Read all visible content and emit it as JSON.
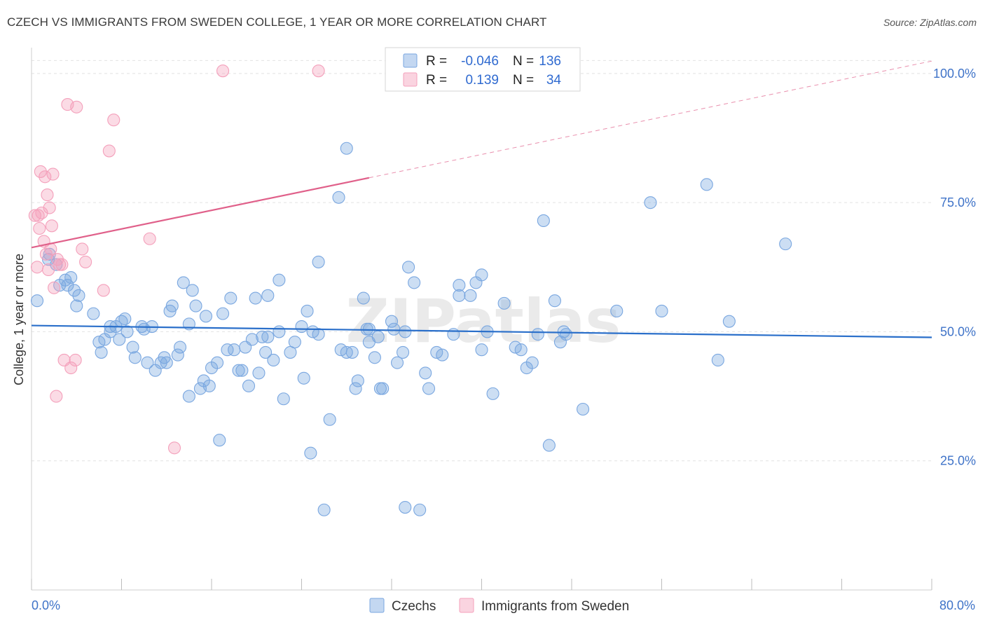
{
  "header": {
    "title": "CZECH VS IMMIGRANTS FROM SWEDEN COLLEGE, 1 YEAR OR MORE CORRELATION CHART",
    "source": "Source: ZipAtlas.com"
  },
  "chart_data": {
    "type": "scatter",
    "ylabel": "College, 1 year or more",
    "xlim": [
      0,
      80
    ],
    "ylim": [
      0,
      105
    ],
    "x_tick_labels": [
      "0.0%",
      "80.0%"
    ],
    "y_tick_labels": [
      "100.0%",
      "75.0%",
      "50.0%",
      "25.0%"
    ],
    "y_ticks": [
      100,
      75,
      50,
      25
    ],
    "watermark": "ZIPatlas",
    "legend_stats": [
      {
        "r_label": "R =",
        "r_value": "-0.046",
        "n_label": "N =",
        "n_value": "136"
      },
      {
        "r_label": "R =",
        "r_value": "0.139",
        "n_label": "N =",
        "n_value": "34"
      }
    ],
    "series": [
      {
        "name": "Czechs",
        "color": "#7aa7e0",
        "line_color": "#2a6fca",
        "trend": {
          "x0": 0,
          "y0": 51.2,
          "x1": 80,
          "y1": 48.9
        },
        "points": [
          [
            0.5,
            56
          ],
          [
            1.5,
            64
          ],
          [
            1.6,
            65
          ],
          [
            2.2,
            63
          ],
          [
            2.5,
            59
          ],
          [
            3,
            60
          ],
          [
            3.2,
            59
          ],
          [
            3.5,
            60.5
          ],
          [
            3.8,
            58
          ],
          [
            4.2,
            57
          ],
          [
            4,
            55
          ],
          [
            5.5,
            53.5
          ],
          [
            6,
            48
          ],
          [
            6.2,
            46
          ],
          [
            6.5,
            48.5
          ],
          [
            7,
            51
          ],
          [
            7.5,
            51
          ],
          [
            7.8,
            48.5
          ],
          [
            8,
            52
          ],
          [
            8.3,
            52.5
          ],
          [
            8.5,
            50
          ],
          [
            9,
            47
          ],
          [
            9.2,
            45
          ],
          [
            9.8,
            51
          ],
          [
            10,
            50.5
          ],
          [
            10.3,
            44
          ],
          [
            10.7,
            51
          ],
          [
            11,
            42.5
          ],
          [
            11.5,
            44
          ],
          [
            11.8,
            45
          ],
          [
            12,
            44
          ],
          [
            12.3,
            54
          ],
          [
            12.5,
            55
          ],
          [
            13,
            45.5
          ],
          [
            13.2,
            47
          ],
          [
            13.5,
            59.5
          ],
          [
            14,
            37.5
          ],
          [
            14.3,
            58
          ],
          [
            14.6,
            55
          ],
          [
            15,
            39
          ],
          [
            15.3,
            40.5
          ],
          [
            15.5,
            53
          ],
          [
            15.8,
            39.5
          ],
          [
            16,
            43
          ],
          [
            16.5,
            44
          ],
          [
            16.7,
            29
          ],
          [
            17,
            53.5
          ],
          [
            17.4,
            46.5
          ],
          [
            17.7,
            56.5
          ],
          [
            18,
            46.5
          ],
          [
            18.4,
            42.5
          ],
          [
            18.7,
            42.5
          ],
          [
            19,
            47
          ],
          [
            19.3,
            39.5
          ],
          [
            19.6,
            48.5
          ],
          [
            19.9,
            56.5
          ],
          [
            20.2,
            42
          ],
          [
            20.5,
            49
          ],
          [
            20.8,
            46
          ],
          [
            21,
            57
          ],
          [
            21.5,
            44.5
          ],
          [
            22,
            50
          ],
          [
            22,
            60
          ],
          [
            22.4,
            37
          ],
          [
            23,
            46
          ],
          [
            23.4,
            48
          ],
          [
            24,
            51
          ],
          [
            24.2,
            41
          ],
          [
            24.5,
            54
          ],
          [
            24.8,
            26.5
          ],
          [
            25,
            50
          ],
          [
            25.5,
            49.5
          ],
          [
            25.5,
            63.5
          ],
          [
            26.5,
            33
          ],
          [
            27.5,
            46.5
          ],
          [
            27.3,
            76
          ],
          [
            28,
            85.5
          ],
          [
            28.5,
            46
          ],
          [
            28.8,
            39
          ],
          [
            29,
            40.5
          ],
          [
            29.5,
            56.5
          ],
          [
            29.8,
            50.5
          ],
          [
            30,
            48
          ],
          [
            30.5,
            45
          ],
          [
            30.8,
            49
          ],
          [
            31,
            39
          ],
          [
            31.2,
            39
          ],
          [
            32,
            52
          ],
          [
            32.2,
            50.5
          ],
          [
            32.5,
            44
          ],
          [
            33,
            46
          ],
          [
            33.2,
            50
          ],
          [
            33.5,
            62.5
          ],
          [
            34,
            59.5
          ],
          [
            34.5,
            15.5
          ],
          [
            35,
            42
          ],
          [
            35.3,
            39
          ],
          [
            36,
            46
          ],
          [
            36.5,
            45.5
          ],
          [
            38,
            59
          ],
          [
            38,
            57
          ],
          [
            39,
            57
          ],
          [
            39.5,
            59.5
          ],
          [
            40,
            61
          ],
          [
            40.5,
            50
          ],
          [
            41,
            38
          ],
          [
            42,
            55.5
          ],
          [
            43,
            47
          ],
          [
            43.5,
            46.5
          ],
          [
            44,
            43
          ],
          [
            44.5,
            44
          ],
          [
            45,
            49.5
          ],
          [
            45.5,
            71.5
          ],
          [
            46,
            28
          ],
          [
            46.5,
            56
          ],
          [
            47,
            48
          ],
          [
            47.3,
            50
          ],
          [
            47.5,
            49.5
          ],
          [
            49,
            35
          ],
          [
            52,
            54
          ],
          [
            55,
            75
          ],
          [
            56,
            54
          ],
          [
            60,
            78.5
          ],
          [
            61,
            44.5
          ],
          [
            62,
            52
          ],
          [
            67,
            67
          ],
          [
            26,
            15.5
          ],
          [
            28,
            46
          ],
          [
            40,
            46.5
          ],
          [
            30,
            50.5
          ],
          [
            33.2,
            16
          ],
          [
            37.5,
            49.5
          ],
          [
            21,
            49
          ],
          [
            14,
            51.5
          ],
          [
            7,
            50
          ]
        ]
      },
      {
        "name": "Immigrants from Sweden",
        "color": "#f4a0bb",
        "line_color": "#e0608a",
        "trend": {
          "x0": 0,
          "y0": 66.3,
          "x1": 30,
          "y1": 79.8,
          "x_dash_end": 80,
          "y_dash_end": 102.4
        },
        "points": [
          [
            0.3,
            72.5
          ],
          [
            0.5,
            62.5
          ],
          [
            0.6,
            72.5
          ],
          [
            0.7,
            70
          ],
          [
            0.8,
            81
          ],
          [
            0.9,
            73
          ],
          [
            1.1,
            67.5
          ],
          [
            1.2,
            80
          ],
          [
            1.4,
            76.5
          ],
          [
            1.5,
            62
          ],
          [
            1.6,
            74
          ],
          [
            1.7,
            66
          ],
          [
            1.8,
            70.5
          ],
          [
            1.9,
            80.5
          ],
          [
            2,
            58.5
          ],
          [
            2.2,
            37.5
          ],
          [
            2.5,
            63
          ],
          [
            2.7,
            63
          ],
          [
            2.9,
            44.5
          ],
          [
            3.2,
            94
          ],
          [
            3.5,
            43
          ],
          [
            3.9,
            44.5
          ],
          [
            4,
            93.5
          ],
          [
            4.5,
            66
          ],
          [
            4.8,
            63.5
          ],
          [
            6.4,
            58
          ],
          [
            6.9,
            85
          ],
          [
            7.3,
            91
          ],
          [
            10.5,
            68
          ],
          [
            12.7,
            27.5
          ],
          [
            17,
            100.5
          ],
          [
            25.5,
            100.5
          ],
          [
            2.3,
            64
          ],
          [
            1.3,
            65
          ]
        ]
      }
    ]
  }
}
